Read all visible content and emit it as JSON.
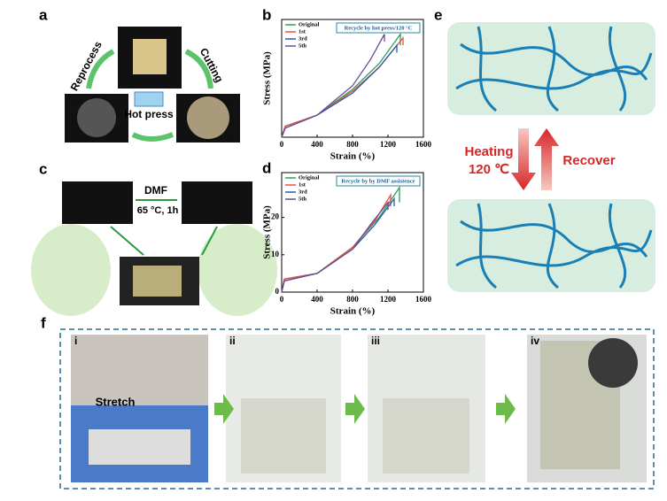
{
  "chart_data": [
    {
      "type": "line",
      "panel": "b",
      "annotation": "Recycle by hot press/120 °C",
      "x_label": "Strain (%)",
      "y_label": "Stress (MPa)",
      "xlim": [
        0,
        1600
      ],
      "ylim": [
        0,
        32
      ],
      "xticks": [
        0,
        400,
        800,
        1200,
        1600
      ],
      "series": [
        {
          "name": "Original",
          "color": "#2ca05a",
          "x": [
            0,
            40,
            400,
            800,
            1100,
            1340,
            1340
          ],
          "values": [
            0,
            3,
            6,
            13,
            20,
            28,
            25
          ]
        },
        {
          "name": "1st",
          "color": "#e8533f",
          "x": [
            0,
            40,
            400,
            800,
            1100,
            1370,
            1370
          ],
          "values": [
            0,
            3,
            6,
            12.5,
            19,
            27,
            25
          ]
        },
        {
          "name": "3rd",
          "color": "#2a5caa",
          "x": [
            0,
            40,
            400,
            800,
            1100,
            1300,
            1300
          ],
          "values": [
            0,
            2.5,
            6,
            12,
            19,
            25,
            23
          ]
        },
        {
          "name": "5th",
          "color": "#6a4c93",
          "x": [
            0,
            40,
            400,
            800,
            1000,
            1160,
            1160
          ],
          "values": [
            0,
            2.5,
            6,
            14,
            21,
            28,
            26
          ]
        }
      ]
    },
    {
      "type": "line",
      "panel": "d",
      "annotation": "Recycle by by DMF assistence",
      "x_label": "Strain (%)",
      "y_label": "Stress (MPa)",
      "xlim": [
        0,
        1600
      ],
      "ylim": [
        0,
        32
      ],
      "xticks": [
        0,
        400,
        800,
        1200,
        1600
      ],
      "yticks": [
        0,
        10,
        20
      ],
      "series": [
        {
          "name": "Original",
          "color": "#2ca05a",
          "x": [
            0,
            30,
            400,
            800,
            1100,
            1330,
            1330
          ],
          "values": [
            0,
            3.5,
            5,
            12,
            20,
            28,
            24
          ]
        },
        {
          "name": "1st",
          "color": "#e8533f",
          "x": [
            0,
            30,
            400,
            800,
            1050,
            1230,
            1230
          ],
          "values": [
            0,
            3.5,
            5,
            12,
            19,
            26,
            23
          ]
        },
        {
          "name": "3rd",
          "color": "#2a5caa",
          "x": [
            0,
            30,
            400,
            800,
            1050,
            1270,
            1270
          ],
          "values": [
            0,
            3,
            5,
            11.5,
            18,
            25,
            23
          ]
        },
        {
          "name": "5th",
          "color": "#6a4c93",
          "x": [
            0,
            30,
            400,
            800,
            1000,
            1200,
            1200
          ],
          "values": [
            0,
            3,
            5,
            11.5,
            18,
            24,
            22
          ]
        }
      ]
    }
  ],
  "panel_a": {
    "label": "a",
    "reprocess": "Reprocess",
    "cutting": "Cutting",
    "hot_press": "Hot press"
  },
  "panel_c": {
    "label": "c",
    "solvent": "DMF",
    "condition": "65 °C, 1h"
  },
  "panel_e": {
    "label": "e",
    "heating": "Heating",
    "temperature": "120 ℃",
    "recover": "Recover"
  },
  "panel_f": {
    "label": "f",
    "step_1": "i",
    "stretch": "Stretch",
    "step_2": "ii",
    "step_3": "iii",
    "step_4": "iv"
  }
}
